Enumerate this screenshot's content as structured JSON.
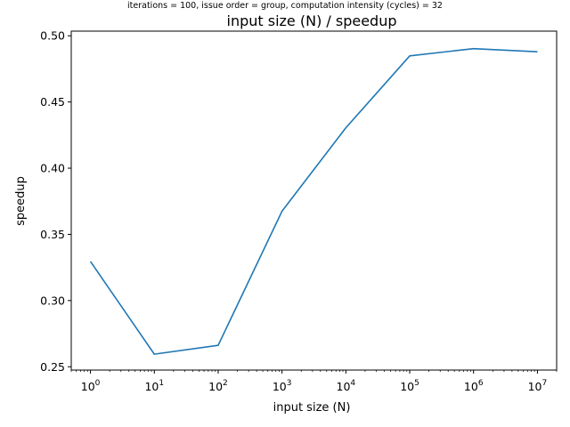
{
  "chart_data": {
    "type": "line",
    "suptitle": "iterations = 100, issue order = group, computation intensity (cycles) = 32",
    "title": "input size (N) / speedup",
    "xlabel": "input size (N)",
    "ylabel": "speedup",
    "xscale": "log",
    "xlim": [
      0.5,
      20000000
    ],
    "ylim": [
      0.2475,
      0.5035
    ],
    "grid": false,
    "x": [
      1,
      10,
      100,
      1000,
      10000,
      100000,
      1000000,
      10000000
    ],
    "series": [
      {
        "values": [
          0.3295,
          0.2595,
          0.2662,
          0.3675,
          0.4305,
          0.4848,
          0.4903,
          0.4879
        ],
        "color": "#1f77b4"
      }
    ],
    "x_ticks": [
      {
        "base": "10",
        "exp": "0",
        "value": 1
      },
      {
        "base": "10",
        "exp": "1",
        "value": 10
      },
      {
        "base": "10",
        "exp": "2",
        "value": 100
      },
      {
        "base": "10",
        "exp": "3",
        "value": 1000
      },
      {
        "base": "10",
        "exp": "4",
        "value": 10000
      },
      {
        "base": "10",
        "exp": "5",
        "value": 100000
      },
      {
        "base": "10",
        "exp": "6",
        "value": 1000000
      },
      {
        "base": "10",
        "exp": "7",
        "value": 10000000
      }
    ],
    "y_ticks": [
      {
        "label": "0.25",
        "value": 0.25
      },
      {
        "label": "0.30",
        "value": 0.3
      },
      {
        "label": "0.35",
        "value": 0.35
      },
      {
        "label": "0.40",
        "value": 0.4
      },
      {
        "label": "0.45",
        "value": 0.45
      },
      {
        "label": "0.50",
        "value": 0.5
      }
    ]
  }
}
